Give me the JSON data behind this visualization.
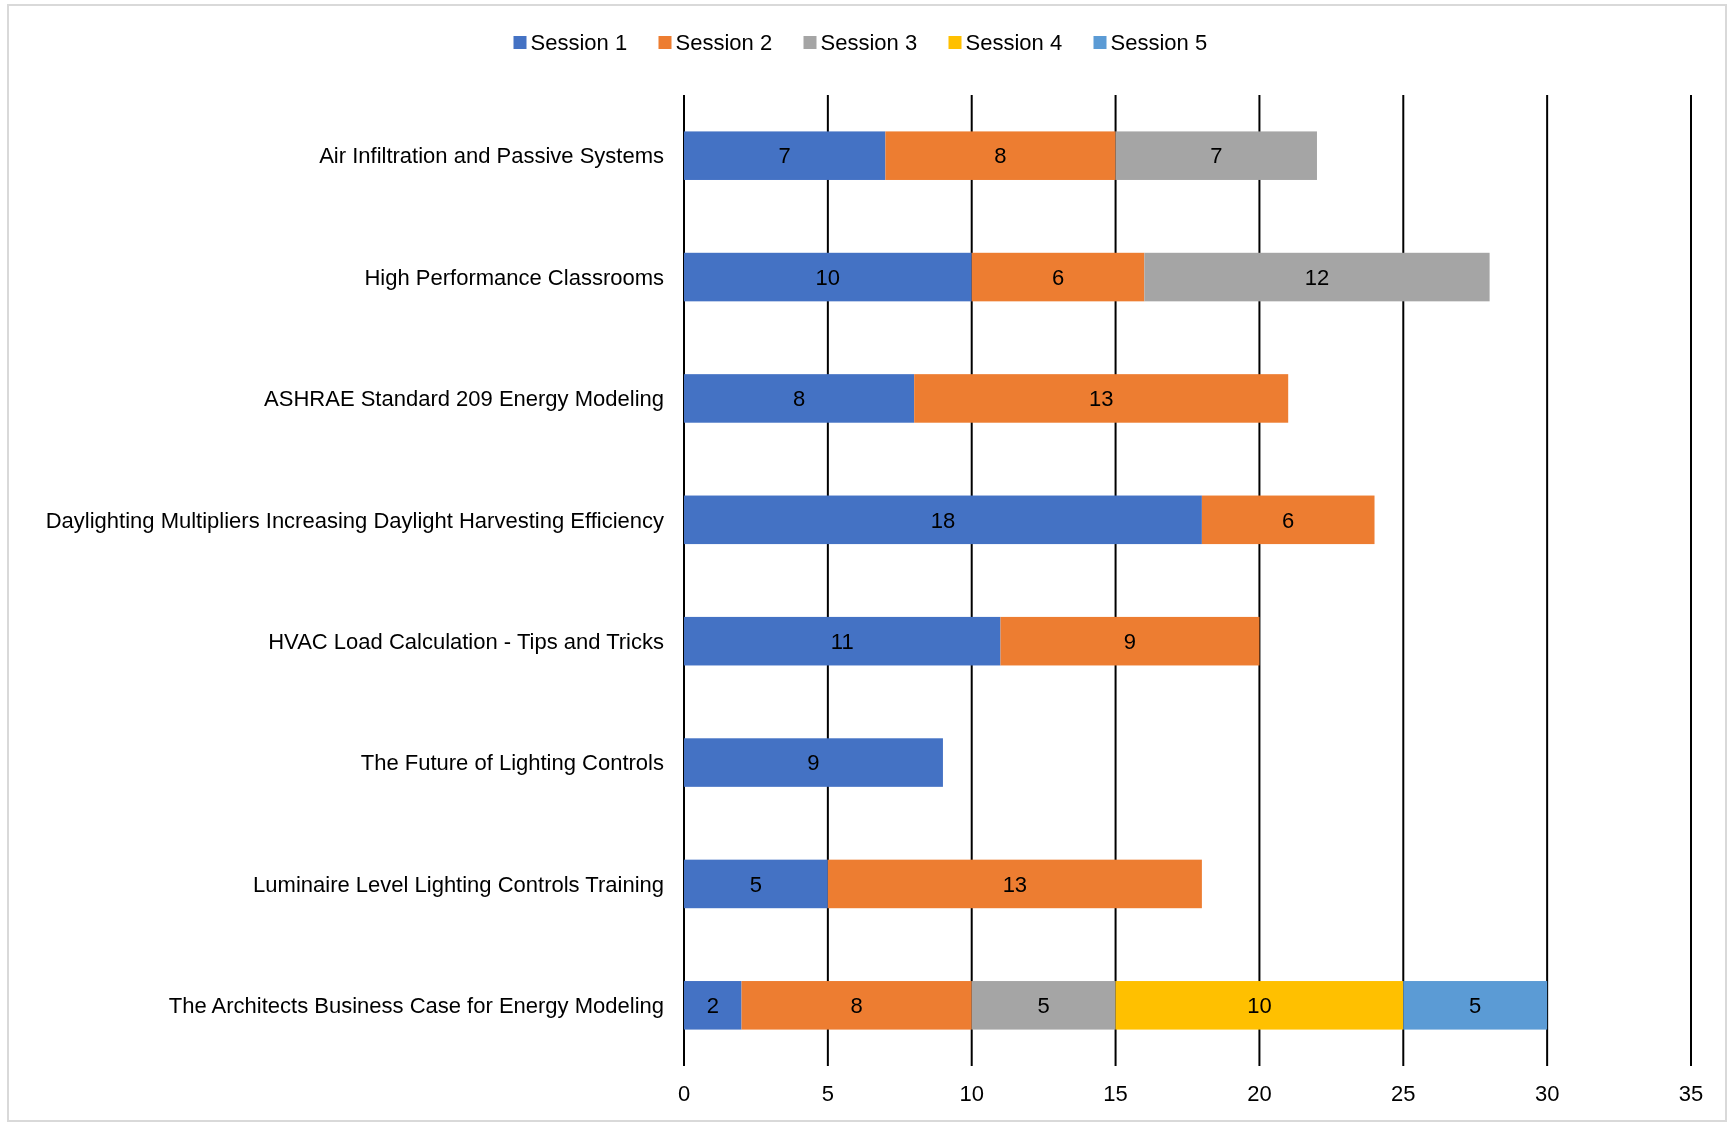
{
  "chart_data": {
    "type": "bar",
    "orientation": "horizontal",
    "stacked": true,
    "categories": [
      "Air Infiltration and Passive Systems",
      "High Performance Classrooms",
      "ASHRAE Standard 209 Energy Modeling",
      "Daylighting Multipliers Increasing Daylight Harvesting Efficiency",
      "HVAC Load Calculation - Tips and Tricks",
      "The Future of Lighting Controls",
      "Luminaire Level Lighting Controls Training",
      "The Architects Business Case for Energy Modeling"
    ],
    "series": [
      {
        "name": "Session 1",
        "color": "#4472c4",
        "values": [
          7,
          10,
          8,
          18,
          11,
          9,
          5,
          2
        ]
      },
      {
        "name": "Session 2",
        "color": "#ed7d31",
        "values": [
          8,
          6,
          13,
          6,
          9,
          null,
          13,
          8
        ]
      },
      {
        "name": "Session 3",
        "color": "#a5a5a5",
        "values": [
          7,
          12,
          null,
          null,
          null,
          null,
          null,
          5
        ]
      },
      {
        "name": "Session 4",
        "color": "#ffc000",
        "values": [
          null,
          null,
          null,
          null,
          null,
          null,
          null,
          10
        ]
      },
      {
        "name": "Session 5",
        "color": "#5b9bd5",
        "values": [
          null,
          null,
          null,
          null,
          null,
          null,
          null,
          5
        ]
      }
    ],
    "xlim": [
      0,
      35
    ],
    "xticks": [
      0,
      5,
      10,
      15,
      20,
      25,
      30,
      35
    ],
    "grid": "x",
    "legend": "top",
    "data_labels": true
  }
}
